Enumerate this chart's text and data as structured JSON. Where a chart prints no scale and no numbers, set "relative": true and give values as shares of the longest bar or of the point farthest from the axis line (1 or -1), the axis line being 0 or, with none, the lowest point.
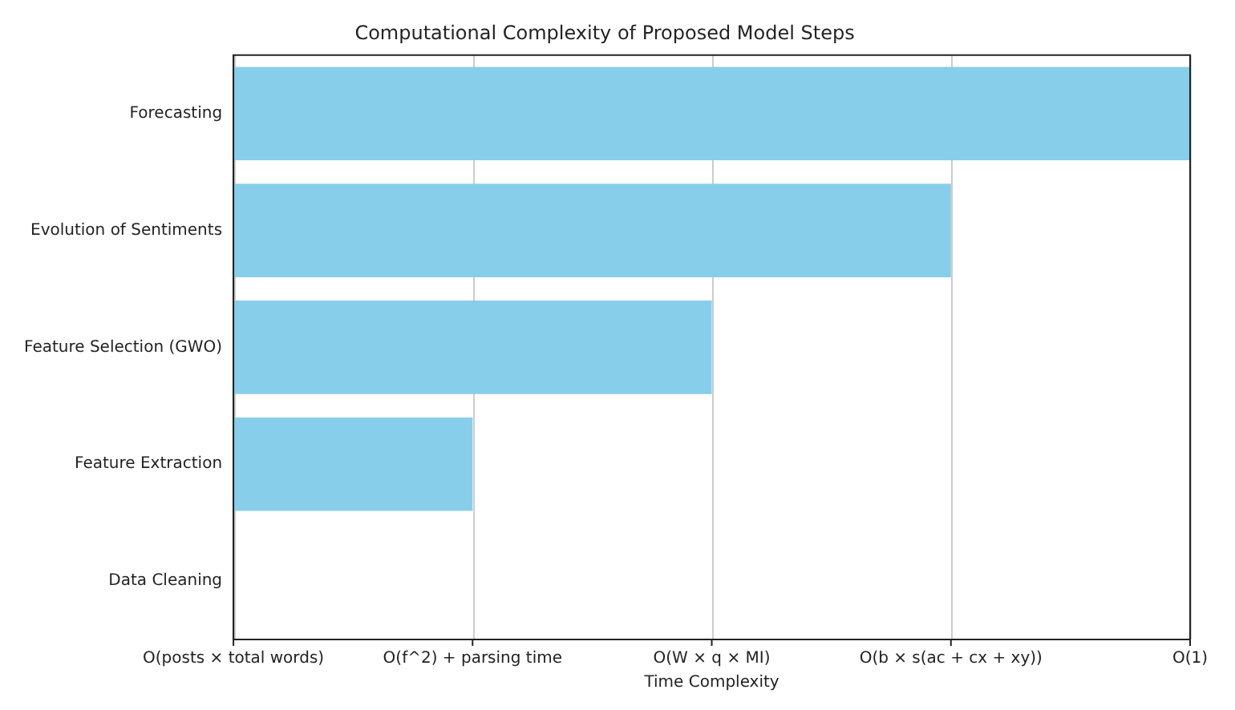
{
  "chart_data": {
    "type": "bar",
    "orientation": "horizontal",
    "relative": true,
    "title": "Computational Complexity of Proposed Model Steps",
    "xlabel": "Time Complexity",
    "categories": [
      "Forecasting",
      "Evolution of Sentiments",
      "Feature Selection (GWO)",
      "Feature Extraction",
      "Data Cleaning"
    ],
    "values": [
      1,
      0.75,
      0.5,
      0.25,
      0
    ],
    "color": "#87ceeb",
    "annotations": [
      "O(posts × total words)",
      "O(f^2) + parsing time",
      "O(W × q × MI)",
      "O(b × s(ac + cx + xy))",
      "O(1)"
    ],
    "grid": "x",
    "legend": false
  }
}
